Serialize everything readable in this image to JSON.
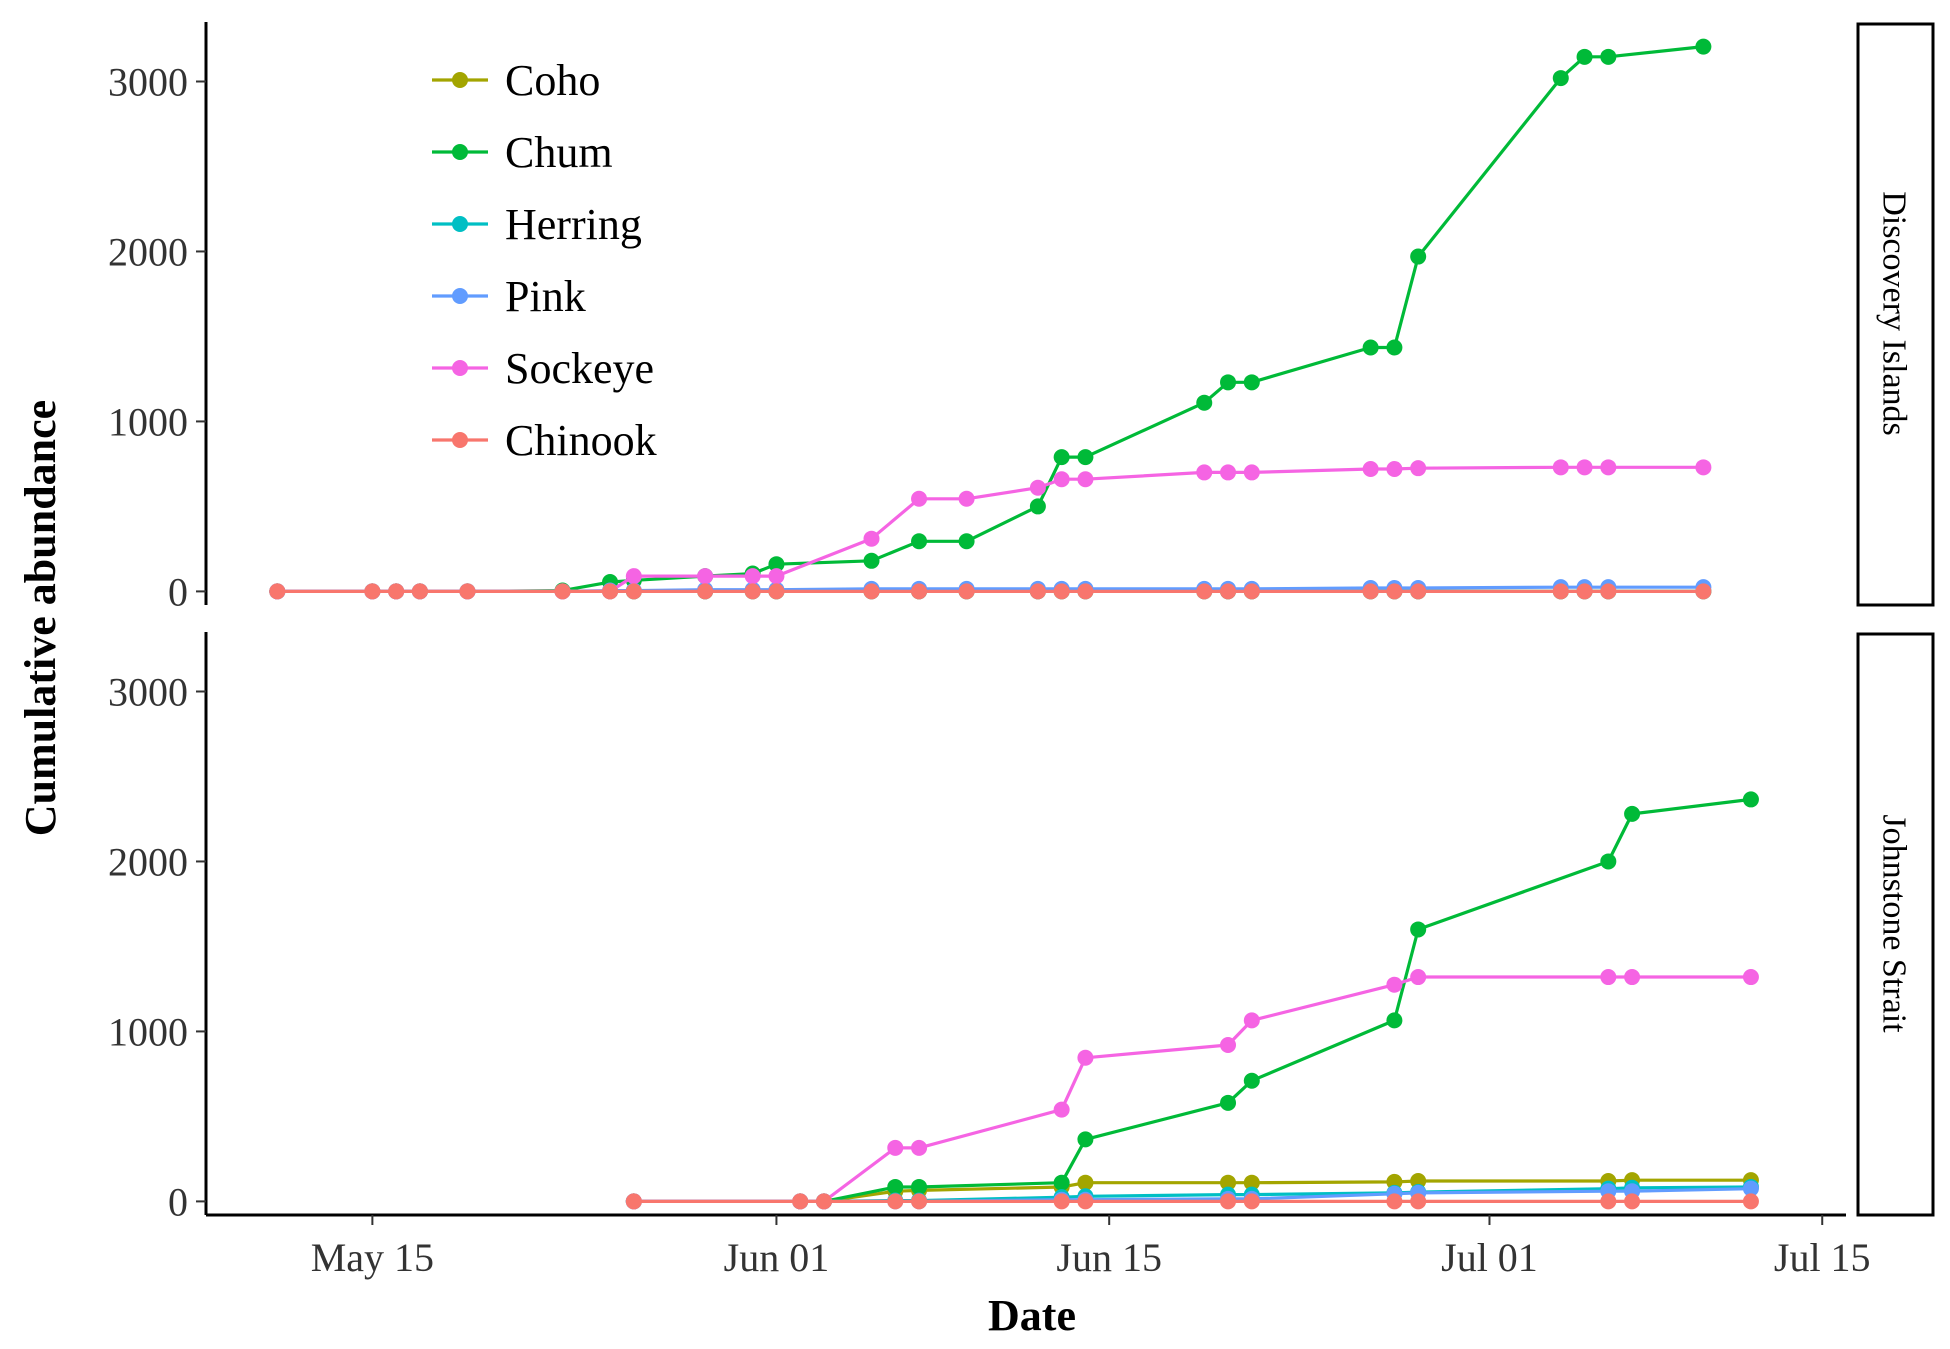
{
  "chart_data": {
    "type": "line",
    "xlabel": "Date",
    "ylabel": "Cumulative abundance",
    "xlim": [
      "2015-05-08",
      "2015-07-16"
    ],
    "ylim": [
      -80,
      3350
    ],
    "x_ticks": [
      "2015-05-15",
      "2015-06-01",
      "2015-06-15",
      "2015-07-01",
      "2015-07-15"
    ],
    "x_tick_labels": [
      "May 15",
      "Jun 01",
      "Jun 15",
      "Jul 01",
      "Jul 15"
    ],
    "y_ticks": [
      0,
      1000,
      2000,
      3000
    ],
    "y_tick_labels": [
      "0",
      "1000",
      "2000",
      "3000"
    ],
    "grid": false,
    "legend_position": "top-left",
    "legend": [
      {
        "name": "Coho",
        "color": "#A3A500"
      },
      {
        "name": "Chum",
        "color": "#00BA38"
      },
      {
        "name": "Herring",
        "color": "#00BFC4"
      },
      {
        "name": "Pink",
        "color": "#619CFF"
      },
      {
        "name": "Sockeye",
        "color": "#F564E3"
      },
      {
        "name": "Chinook",
        "color": "#F8766D"
      }
    ],
    "panels": [
      {
        "label": "Discovery Islands",
        "series": [
          {
            "name": "Coho",
            "color": "#A3A500",
            "x": [
              "2015-05-11",
              "2015-05-15",
              "2015-05-16",
              "2015-05-17",
              "2015-05-19",
              "2015-05-23",
              "2015-05-25",
              "2015-05-26",
              "2015-05-29",
              "2015-05-31",
              "2015-06-01",
              "2015-06-05",
              "2015-06-07",
              "2015-06-09",
              "2015-06-12",
              "2015-06-13",
              "2015-06-14",
              "2015-06-19",
              "2015-06-20",
              "2015-06-21",
              "2015-06-26",
              "2015-06-27",
              "2015-06-28",
              "2015-07-04",
              "2015-07-05",
              "2015-07-06",
              "2015-07-10"
            ],
            "y": [
              0,
              0,
              0,
              0,
              0,
              0,
              0,
              0,
              0,
              0,
              0,
              0,
              0,
              0,
              0,
              0,
              0,
              0,
              0,
              0,
              0,
              0,
              0,
              0,
              0,
              0,
              0
            ]
          },
          {
            "name": "Chum",
            "color": "#00BA38",
            "x": [
              "2015-05-11",
              "2015-05-15",
              "2015-05-16",
              "2015-05-17",
              "2015-05-19",
              "2015-05-23",
              "2015-05-25",
              "2015-05-26",
              "2015-05-29",
              "2015-05-31",
              "2015-06-01",
              "2015-06-05",
              "2015-06-07",
              "2015-06-09",
              "2015-06-12",
              "2015-06-13",
              "2015-06-14",
              "2015-06-19",
              "2015-06-20",
              "2015-06-21",
              "2015-06-26",
              "2015-06-27",
              "2015-06-28",
              "2015-07-04",
              "2015-07-05",
              "2015-07-06",
              "2015-07-10"
            ],
            "y": [
              0,
              0,
              0,
              0,
              0,
              5,
              55,
              65,
              90,
              105,
              160,
              180,
              295,
              295,
              500,
              790,
              790,
              1110,
              1230,
              1230,
              1435,
              1435,
              1970,
              3020,
              3145,
              3145,
              3205
            ]
          },
          {
            "name": "Herring",
            "color": "#00BFC4",
            "x": [
              "2015-05-11",
              "2015-05-15",
              "2015-05-16",
              "2015-05-17",
              "2015-05-19",
              "2015-05-23",
              "2015-05-25",
              "2015-05-26",
              "2015-05-29",
              "2015-05-31",
              "2015-06-01",
              "2015-06-05",
              "2015-06-07",
              "2015-06-09",
              "2015-06-12",
              "2015-06-13",
              "2015-06-14",
              "2015-06-19",
              "2015-06-20",
              "2015-06-21",
              "2015-06-26",
              "2015-06-27",
              "2015-06-28",
              "2015-07-04",
              "2015-07-05",
              "2015-07-06",
              "2015-07-10"
            ],
            "y": [
              0,
              0,
              0,
              0,
              0,
              0,
              0,
              0,
              0,
              0,
              0,
              0,
              0,
              0,
              0,
              0,
              0,
              0,
              0,
              0,
              0,
              0,
              0,
              0,
              0,
              0,
              0
            ]
          },
          {
            "name": "Pink",
            "color": "#619CFF",
            "x": [
              "2015-05-11",
              "2015-05-15",
              "2015-05-16",
              "2015-05-17",
              "2015-05-19",
              "2015-05-23",
              "2015-05-25",
              "2015-05-26",
              "2015-05-29",
              "2015-05-31",
              "2015-06-01",
              "2015-06-05",
              "2015-06-07",
              "2015-06-09",
              "2015-06-12",
              "2015-06-13",
              "2015-06-14",
              "2015-06-19",
              "2015-06-20",
              "2015-06-21",
              "2015-06-26",
              "2015-06-27",
              "2015-06-28",
              "2015-07-04",
              "2015-07-05",
              "2015-07-06",
              "2015-07-10"
            ],
            "y": [
              0,
              0,
              0,
              0,
              0,
              0,
              5,
              5,
              10,
              10,
              10,
              15,
              15,
              15,
              15,
              15,
              15,
              15,
              15,
              15,
              20,
              20,
              20,
              25,
              25,
              25,
              25
            ]
          },
          {
            "name": "Sockeye",
            "color": "#F564E3",
            "x": [
              "2015-05-11",
              "2015-05-15",
              "2015-05-16",
              "2015-05-17",
              "2015-05-19",
              "2015-05-23",
              "2015-05-25",
              "2015-05-26",
              "2015-05-29",
              "2015-05-31",
              "2015-06-01",
              "2015-06-05",
              "2015-06-07",
              "2015-06-09",
              "2015-06-12",
              "2015-06-13",
              "2015-06-14",
              "2015-06-19",
              "2015-06-20",
              "2015-06-21",
              "2015-06-26",
              "2015-06-27",
              "2015-06-28",
              "2015-07-04",
              "2015-07-05",
              "2015-07-06",
              "2015-07-10"
            ],
            "y": [
              0,
              0,
              0,
              0,
              0,
              0,
              0,
              90,
              90,
              90,
              90,
              310,
              545,
              545,
              610,
              660,
              660,
              700,
              700,
              700,
              720,
              720,
              725,
              730,
              730,
              730,
              730
            ]
          },
          {
            "name": "Chinook",
            "color": "#F8766D",
            "x": [
              "2015-05-11",
              "2015-05-15",
              "2015-05-16",
              "2015-05-17",
              "2015-05-19",
              "2015-05-23",
              "2015-05-25",
              "2015-05-26",
              "2015-05-29",
              "2015-05-31",
              "2015-06-01",
              "2015-06-05",
              "2015-06-07",
              "2015-06-09",
              "2015-06-12",
              "2015-06-13",
              "2015-06-14",
              "2015-06-19",
              "2015-06-20",
              "2015-06-21",
              "2015-06-26",
              "2015-06-27",
              "2015-06-28",
              "2015-07-04",
              "2015-07-05",
              "2015-07-06",
              "2015-07-10"
            ],
            "y": [
              0,
              0,
              0,
              0,
              0,
              0,
              0,
              0,
              0,
              0,
              0,
              0,
              0,
              0,
              0,
              0,
              0,
              0,
              0,
              0,
              0,
              0,
              0,
              0,
              0,
              0,
              0
            ]
          }
        ]
      },
      {
        "label": "Johnstone Strait",
        "series": [
          {
            "name": "Coho",
            "color": "#A3A500",
            "x": [
              "2015-05-26",
              "2015-06-02",
              "2015-06-03",
              "2015-06-06",
              "2015-06-07",
              "2015-06-13",
              "2015-06-14",
              "2015-06-20",
              "2015-06-21",
              "2015-06-27",
              "2015-06-28",
              "2015-07-06",
              "2015-07-07",
              "2015-07-12"
            ],
            "y": [
              0,
              0,
              0,
              60,
              65,
              85,
              110,
              110,
              110,
              115,
              120,
              120,
              125,
              125
            ]
          },
          {
            "name": "Chum",
            "color": "#00BA38",
            "x": [
              "2015-05-26",
              "2015-06-02",
              "2015-06-03",
              "2015-06-06",
              "2015-06-07",
              "2015-06-13",
              "2015-06-14",
              "2015-06-20",
              "2015-06-21",
              "2015-06-27",
              "2015-06-28",
              "2015-07-06",
              "2015-07-07",
              "2015-07-12"
            ],
            "y": [
              0,
              0,
              0,
              85,
              85,
              110,
              365,
              580,
              710,
              1065,
              1600,
              2000,
              2280,
              2365
            ]
          },
          {
            "name": "Herring",
            "color": "#00BFC4",
            "x": [
              "2015-05-26",
              "2015-06-02",
              "2015-06-03",
              "2015-06-06",
              "2015-06-07",
              "2015-06-13",
              "2015-06-14",
              "2015-06-20",
              "2015-06-21",
              "2015-06-27",
              "2015-06-28",
              "2015-07-06",
              "2015-07-07",
              "2015-07-12"
            ],
            "y": [
              0,
              0,
              0,
              5,
              5,
              25,
              30,
              40,
              40,
              50,
              55,
              75,
              80,
              85
            ]
          },
          {
            "name": "Pink",
            "color": "#619CFF",
            "x": [
              "2015-05-26",
              "2015-06-02",
              "2015-06-03",
              "2015-06-06",
              "2015-06-07",
              "2015-06-13",
              "2015-06-14",
              "2015-06-20",
              "2015-06-21",
              "2015-06-27",
              "2015-06-28",
              "2015-07-06",
              "2015-07-07",
              "2015-07-12"
            ],
            "y": [
              0,
              0,
              0,
              0,
              0,
              10,
              10,
              15,
              15,
              45,
              50,
              60,
              60,
              75
            ]
          },
          {
            "name": "Sockeye",
            "color": "#F564E3",
            "x": [
              "2015-05-26",
              "2015-06-02",
              "2015-06-03",
              "2015-06-06",
              "2015-06-07",
              "2015-06-13",
              "2015-06-14",
              "2015-06-20",
              "2015-06-21",
              "2015-06-27",
              "2015-06-28",
              "2015-07-06",
              "2015-07-07",
              "2015-07-12"
            ],
            "y": [
              0,
              0,
              0,
              315,
              315,
              540,
              845,
              920,
              1065,
              1275,
              1320,
              1320,
              1320,
              1320
            ]
          },
          {
            "name": "Chinook",
            "color": "#F8766D",
            "x": [
              "2015-05-26",
              "2015-06-02",
              "2015-06-03",
              "2015-06-06",
              "2015-06-07",
              "2015-06-13",
              "2015-06-14",
              "2015-06-20",
              "2015-06-21",
              "2015-06-27",
              "2015-06-28",
              "2015-07-06",
              "2015-07-07",
              "2015-07-12"
            ],
            "y": [
              0,
              0,
              0,
              0,
              0,
              0,
              0,
              0,
              0,
              0,
              0,
              0,
              0,
              0
            ]
          }
        ]
      }
    ]
  }
}
